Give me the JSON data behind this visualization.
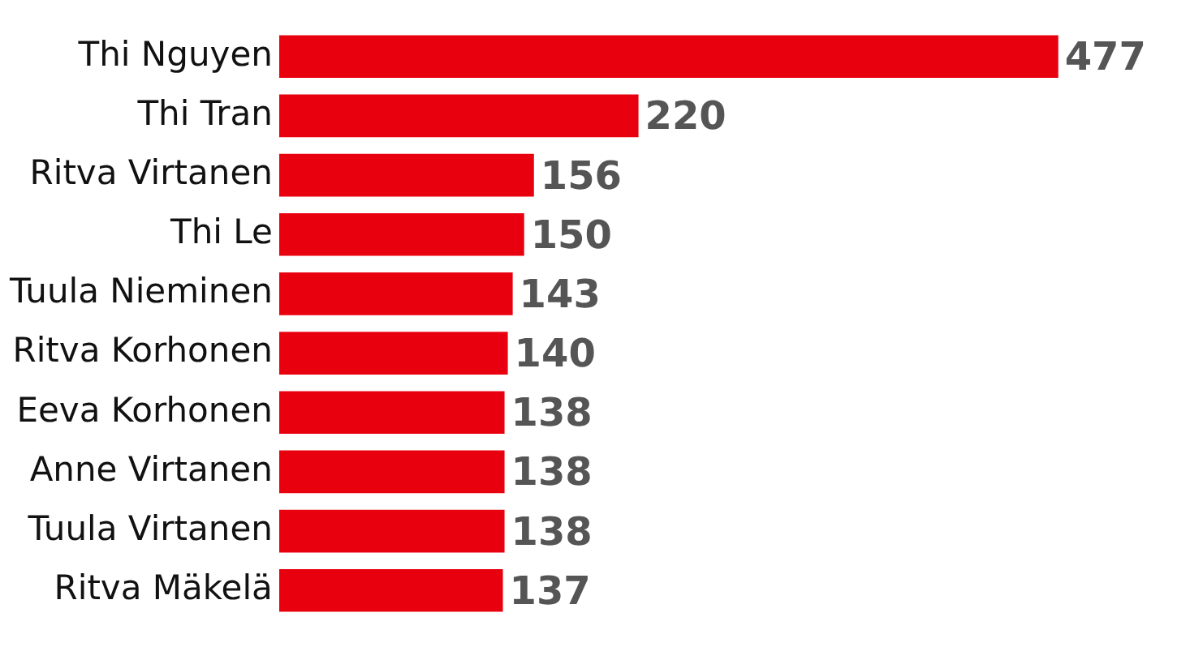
{
  "chart_data": {
    "type": "bar",
    "orientation": "horizontal",
    "categories": [
      "Thi Nguyen",
      "Thi Tran",
      "Ritva Virtanen",
      "Thi Le",
      "Tuula Nieminen",
      "Ritva Korhonen",
      "Eeva Korhonen",
      "Anne Virtanen",
      "Tuula Virtanen",
      "Ritva Mäkelä"
    ],
    "values": [
      477,
      220,
      156,
      150,
      143,
      140,
      138,
      138,
      138,
      137
    ],
    "color": "#e8000e",
    "data_labels": true,
    "grid": false,
    "legend": false,
    "tick_labels": "y"
  }
}
